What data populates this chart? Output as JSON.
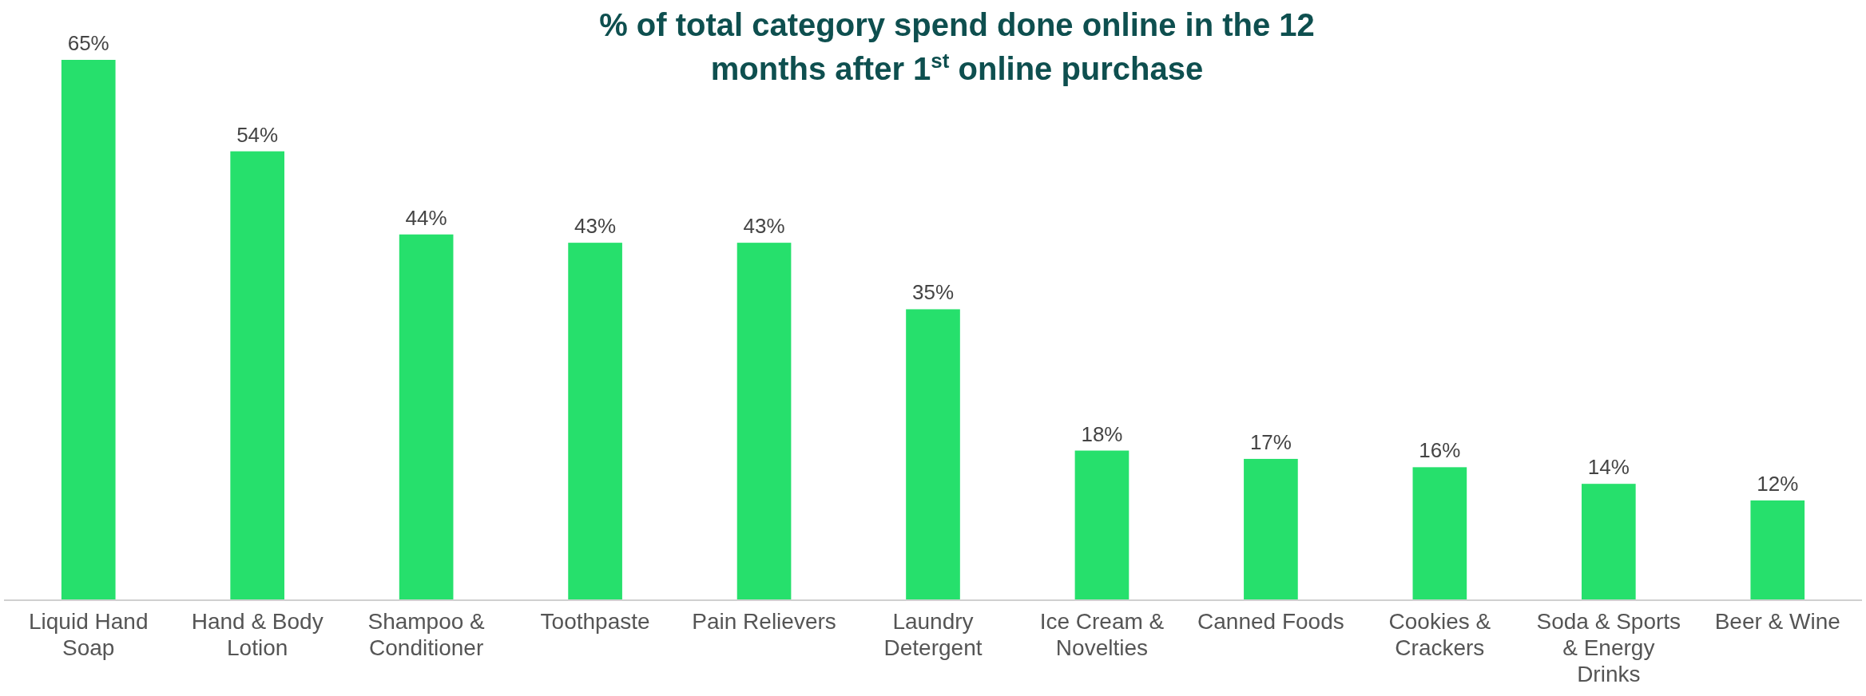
{
  "chart_data": {
    "type": "bar",
    "title": "% of total category spend done online in the 12 months after 1$^{st}$ online purchase",
    "categories": [
      "Liquid Hand Soap",
      "Hand & Body Lotion",
      "Shampoo & Conditioner",
      "Toothpaste",
      "Pain Relievers",
      "Laundry Detergent",
      "Ice Cream & Novelties",
      "Canned Foods",
      "Cookies & Crackers",
      "Soda & Sports & Energy Drinks",
      "Beer & Wine"
    ],
    "values": [
      65,
      54,
      44,
      43,
      43,
      35,
      18,
      17,
      16,
      14,
      12
    ],
    "value_labels": [
      "65%",
      "54%",
      "44%",
      "43%",
      "43%",
      "35%",
      "18%",
      "17%",
      "16%",
      "14%",
      "12%"
    ],
    "color": "#26e06c"
  }
}
